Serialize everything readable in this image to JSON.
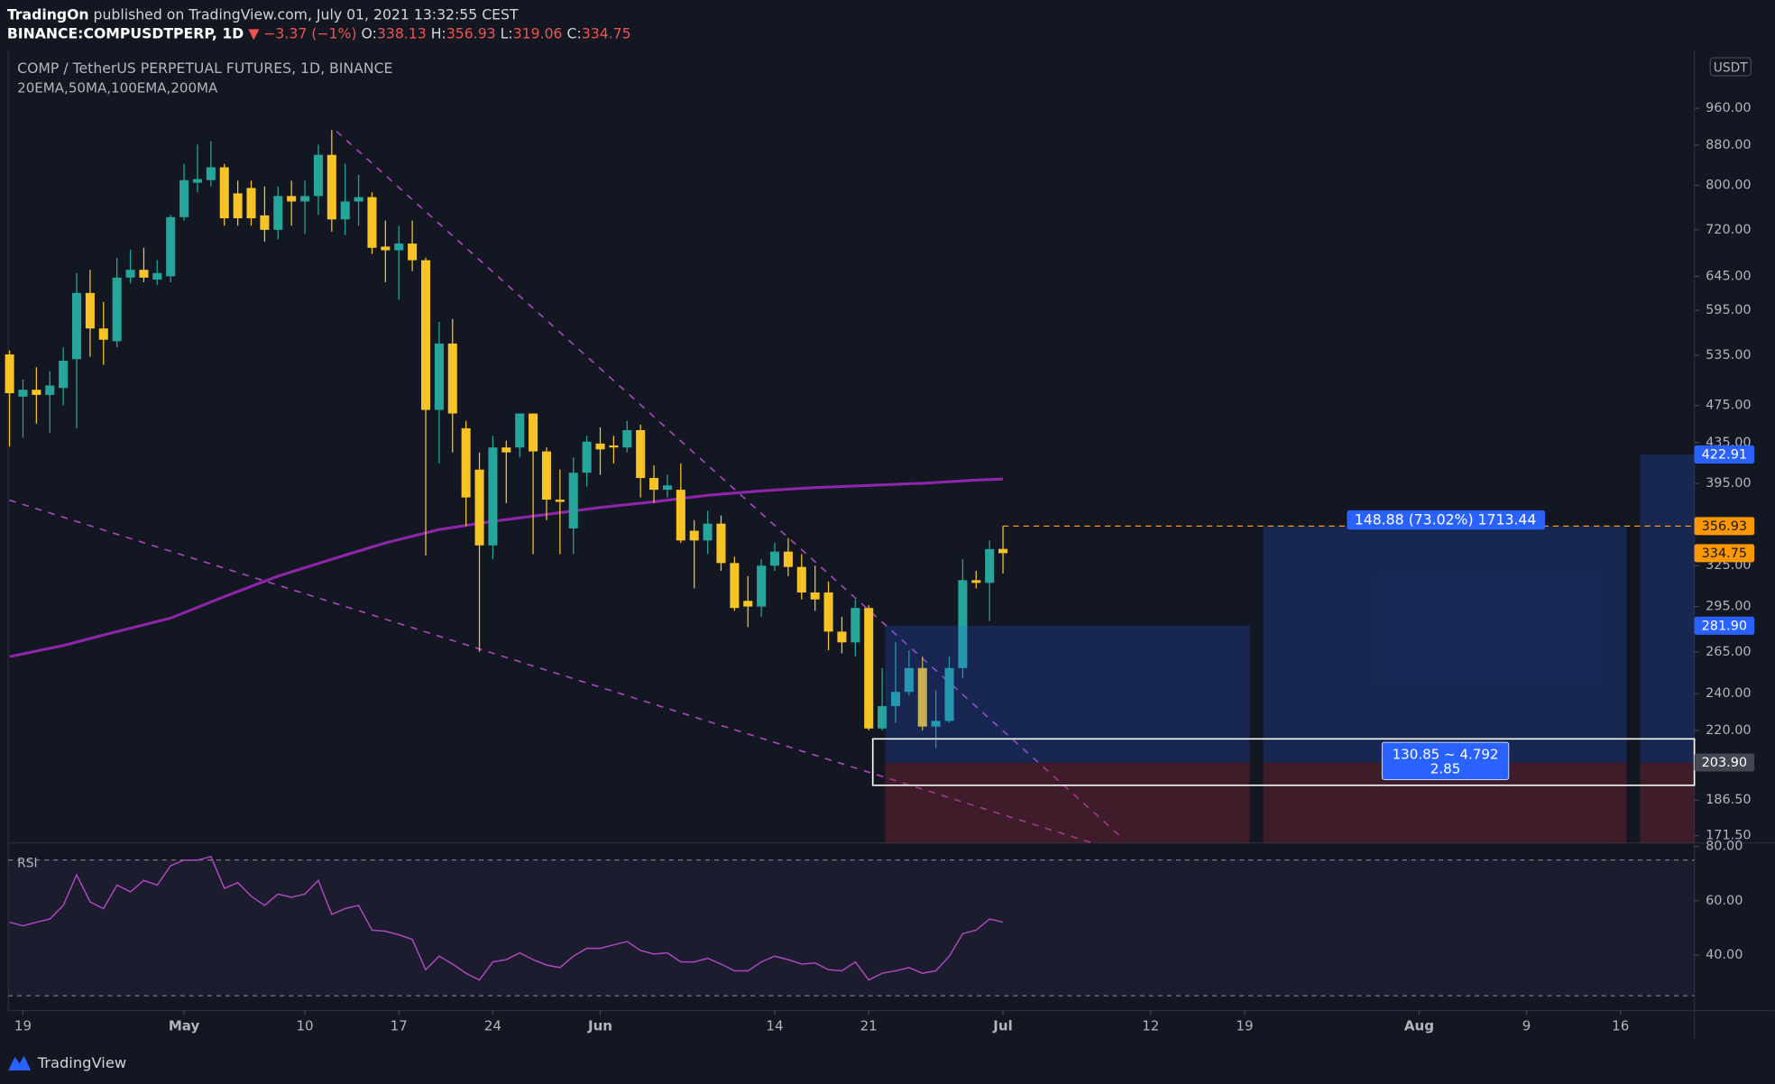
{
  "header": {
    "author": "TradingOn",
    "published": "published on TradingView.com, July 01, 2021 13:32:55 CEST",
    "symbol": "BINANCE:COMPUSDTPERP, 1D",
    "change": "▼ −3.37 (−1%)",
    "ohlc": [
      {
        "key": "O:",
        "value": "338.13"
      },
      {
        "key": "H:",
        "value": "356.93"
      },
      {
        "key": "L:",
        "value": "319.06"
      },
      {
        "key": "C:",
        "value": "334.75"
      }
    ]
  },
  "chart_data": {
    "type": "candlestick",
    "title": "COMP / TetherUS PERPETUAL FUTURES, 1D, BINANCE",
    "subtitle": "20EMA,50MA,100EMA,200MA",
    "currency": "USDT",
    "log_scale": true,
    "grid": false,
    "up_color": "#26a69a",
    "down_color": "#f7c325",
    "open": [
      536,
      485,
      493,
      487,
      495,
      530,
      620,
      570,
      553,
      643,
      655,
      640,
      645,
      742,
      805,
      810,
      835,
      785,
      795,
      745,
      720,
      780,
      770,
      780,
      860,
      738,
      770,
      778,
      692,
      686,
      697,
      670,
      470,
      550,
      450,
      408,
      341,
      430,
      430,
      466,
      426,
      380,
      355,
      405,
      434,
      432,
      430,
      448,
      400,
      389,
      389,
      353,
      345,
      359,
      327,
      299,
      295,
      325,
      336,
      324,
      305,
      305,
      278,
      271,
      294,
      221,
      233,
      241,
      255,
      222,
      225,
      255,
      314,
      312,
      338.13
    ],
    "high": [
      541,
      505,
      520,
      515,
      545,
      650,
      655,
      607,
      674,
      687,
      690,
      670,
      746,
      842,
      881,
      888,
      842,
      809,
      809,
      798,
      798,
      809,
      809,
      881,
      912,
      842,
      820,
      787,
      736,
      727,
      736,
      674,
      579,
      583,
      458,
      425,
      442,
      437,
      466,
      466,
      430,
      408,
      420,
      442,
      451,
      442,
      458,
      454,
      412,
      403,
      414,
      362,
      370,
      366,
      332,
      317,
      330,
      343,
      347,
      334,
      325,
      313,
      288,
      300,
      296,
      255,
      271,
      266,
      262,
      242,
      262,
      330,
      321,
      345,
      356.93
    ],
    "low": [
      431,
      440,
      455,
      445,
      475,
      450,
      533,
      523,
      545,
      634,
      636,
      632,
      636,
      736,
      787,
      798,
      727,
      727,
      727,
      700,
      704,
      727,
      713,
      746,
      717,
      711,
      727,
      680,
      636,
      610,
      653,
      333,
      414,
      425,
      357,
      265,
      330,
      377,
      420,
      334,
      362,
      334,
      334,
      392,
      403,
      414,
      425,
      382,
      377,
      382,
      343,
      308,
      334,
      321,
      292,
      281,
      288,
      321,
      317,
      300,
      292,
      266,
      264,
      262,
      220,
      220,
      224,
      239,
      220,
      211,
      224,
      249,
      308,
      285,
      319.06
    ],
    "close": [
      489,
      493,
      487,
      498,
      528,
      620,
      570,
      555,
      643,
      655,
      643,
      650,
      742,
      810,
      812,
      835,
      740,
      740,
      740,
      720,
      780,
      770,
      780,
      860,
      738,
      770,
      778,
      690,
      686,
      697,
      670,
      470,
      550,
      466,
      382,
      341,
      430,
      425,
      466,
      426,
      380,
      378,
      405,
      436,
      428,
      430,
      448,
      400,
      389,
      393,
      345,
      345,
      359,
      327,
      294,
      295,
      325,
      336,
      324,
      305,
      300,
      278,
      271,
      294,
      221,
      233,
      241,
      255,
      222,
      225,
      255,
      314,
      312,
      338,
      334.75
    ],
    "ylim": [
      168.5,
      1100
    ],
    "yticks": [
      {
        "value": 960,
        "label": "960.00"
      },
      {
        "value": 880,
        "label": "880.00"
      },
      {
        "value": 800,
        "label": "800.00"
      },
      {
        "value": 720,
        "label": "720.00"
      },
      {
        "value": 645,
        "label": "645.00"
      },
      {
        "value": 595,
        "label": "595.00"
      },
      {
        "value": 535,
        "label": "535.00"
      },
      {
        "value": 475,
        "label": "475.00"
      },
      {
        "value": 435,
        "label": "435.00"
      },
      {
        "value": 395,
        "label": "395.00"
      },
      {
        "value": 325,
        "label": "325.00"
      },
      {
        "value": 295,
        "label": "295.00"
      },
      {
        "value": 265,
        "label": "265.00"
      },
      {
        "value": 240,
        "label": "240.00"
      },
      {
        "value": 220,
        "label": "220.00"
      },
      {
        "value": 186.5,
        "label": "186.50"
      },
      {
        "value": 171.5,
        "label": "171.50"
      }
    ],
    "xlim": [
      -0.1,
      125.5
    ],
    "xticks": [
      {
        "value": 1,
        "label": "19"
      },
      {
        "value": 13,
        "label": "May"
      },
      {
        "value": 22,
        "label": "10"
      },
      {
        "value": 29,
        "label": "17"
      },
      {
        "value": 36,
        "label": "24"
      },
      {
        "value": 44,
        "label": "Jun"
      },
      {
        "value": 57,
        "label": "14"
      },
      {
        "value": 64,
        "label": "21"
      },
      {
        "value": 74,
        "label": "Jul"
      },
      {
        "value": 85,
        "label": "12"
      },
      {
        "value": 92,
        "label": "19"
      },
      {
        "value": 105,
        "label": "Aug"
      },
      {
        "value": 113,
        "label": "9"
      },
      {
        "value": 120,
        "label": "16"
      }
    ],
    "ma": {
      "color": "#8e24aa",
      "x": [
        0,
        4,
        8,
        12,
        16,
        20,
        24,
        28,
        32,
        36,
        40,
        44,
        48,
        52,
        56,
        60,
        64,
        68,
        72,
        74
      ],
      "values": [
        262,
        269,
        278,
        287,
        302,
        317,
        330,
        343,
        354,
        361,
        367,
        373,
        378,
        384,
        388,
        391,
        393,
        395,
        398,
        399
      ]
    },
    "price_labels": [
      422.91,
      356.93,
      334.75,
      {
        "value": 281.9,
        "label": "281.90"
      },
      {
        "value": 203.9,
        "label": "203.90"
      }
    ],
    "price_label_colors": [
      "#2962ff",
      "#ff9800",
      "#ff9800",
      "#2962ff",
      "#434651"
    ],
    "price_label_text_colors": [
      "#ffffff",
      "#131722",
      "#131722",
      "#ffffff",
      "#ffffff"
    ],
    "position": {
      "label": "148.88 (73.02%) 1713.44",
      "stats": [
        "130.85 ~ 4.792",
        "2.85"
      ]
    },
    "rsi": {
      "title": "RSI",
      "color": "#ab47bc",
      "ylim": [
        19.6,
        81.3
      ],
      "yticks": [
        {
          "value": 80,
          "label": "80.00"
        },
        {
          "value": 60,
          "label": "60.00"
        },
        {
          "value": 40,
          "label": "40.00"
        }
      ],
      "values": [
        52.1,
        50.8,
        52.1,
        53.3,
        58.3,
        69.6,
        59.6,
        57.1,
        65.8,
        63.3,
        67.5,
        65.8,
        72.9,
        75,
        75,
        76.3,
        64.6,
        66.7,
        61.7,
        58.3,
        62.5,
        61.3,
        62.5,
        67.5,
        55,
        57.1,
        58.3,
        49.2,
        48.8,
        47.5,
        45.8,
        34.6,
        39.6,
        36.7,
        33.3,
        30.8,
        37.5,
        38.3,
        40.8,
        38.3,
        36.3,
        35.4,
        39.6,
        42.5,
        42.5,
        43.8,
        45,
        41.7,
        40.4,
        40.8,
        37.5,
        37.5,
        38.8,
        36.7,
        34.2,
        34.2,
        37.5,
        39.6,
        38.3,
        36.7,
        37.1,
        34.6,
        34.2,
        37.5,
        30.8,
        33.3,
        34.2,
        35.4,
        33.3,
        34.2,
        39.6,
        47.9,
        49.2,
        53.3,
        52.1
      ]
    }
  },
  "footer": {
    "brand": "TradingView"
  }
}
